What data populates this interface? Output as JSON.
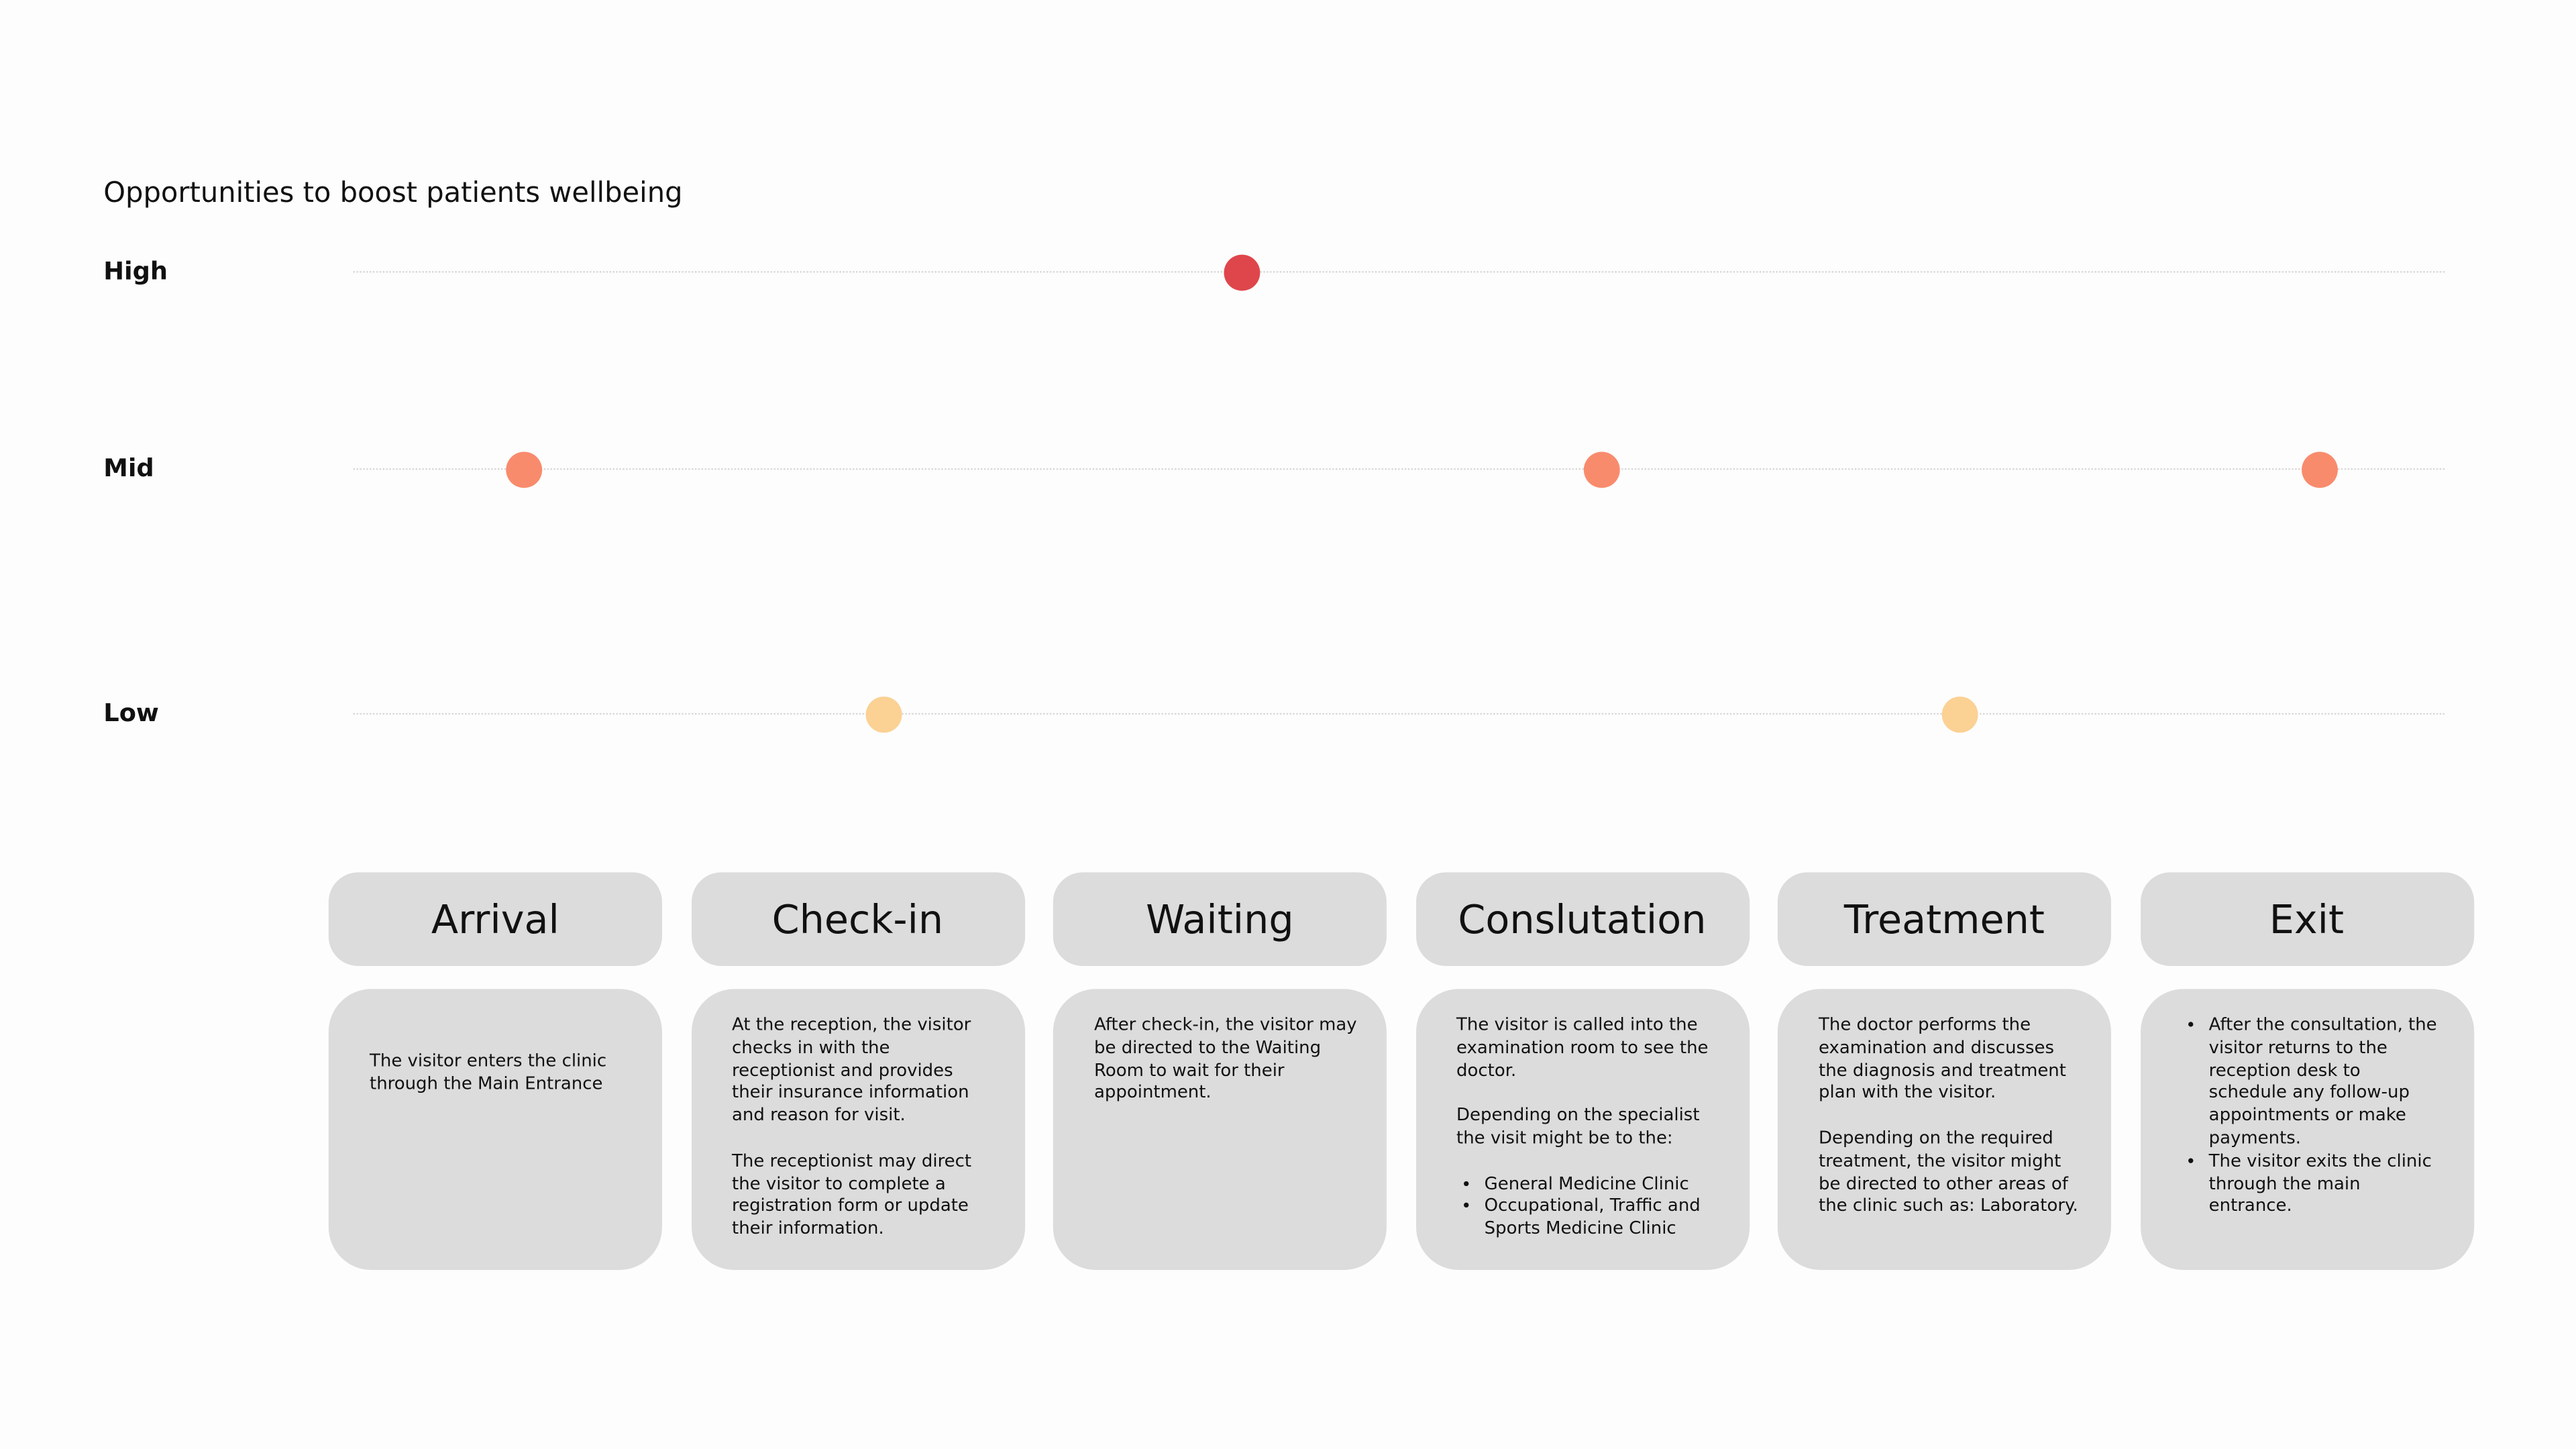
{
  "title": "Opportunities to boost patients wellbeing",
  "levels": [
    {
      "label": "High",
      "color": "#df464b"
    },
    {
      "label": "Mid",
      "color": "#f98b6d"
    },
    {
      "label": "Low",
      "color": "#fbd194"
    }
  ],
  "stages": [
    {
      "name": "Arrival",
      "level": "Mid",
      "paragraphs": [
        "The visitor enters the clinic through the Main Entrance"
      ],
      "bullets": []
    },
    {
      "name": "Check-in",
      "level": "Low",
      "paragraphs": [
        "At the reception, the visitor checks in with the receptionist and provides their insurance information and reason for visit.",
        "The receptionist may direct the visitor to complete a registration form or update their information."
      ],
      "bullets": []
    },
    {
      "name": "Waiting",
      "level": "High",
      "paragraphs": [
        "After check-in, the visitor may be directed to the Waiting Room to wait for their appointment."
      ],
      "bullets": []
    },
    {
      "name": "Conslutation",
      "level": "Mid",
      "paragraphs": [
        "The visitor is called into the examination room to see the doctor.",
        "Depending on the specialist the visit might be to the:"
      ],
      "bullets": [
        "General Medicine Clinic",
        "Occupational, Traffic and Sports Medicine Clinic"
      ]
    },
    {
      "name": "Treatment",
      "level": "Low",
      "paragraphs": [
        "The doctor performs the examination and discusses the diagnosis and treatment plan with the visitor.",
        "Depending on the required treatment, the visitor might be directed to other areas of the clinic such as: Laboratory."
      ],
      "bullets": []
    },
    {
      "name": "Exit",
      "level": "Mid",
      "paragraphs": [],
      "bullets": [
        "After the consultation, the visitor returns to the reception desk to schedule any follow-up appointments or make payments.",
        "The visitor exits the clinic through the main entrance."
      ]
    }
  ]
}
